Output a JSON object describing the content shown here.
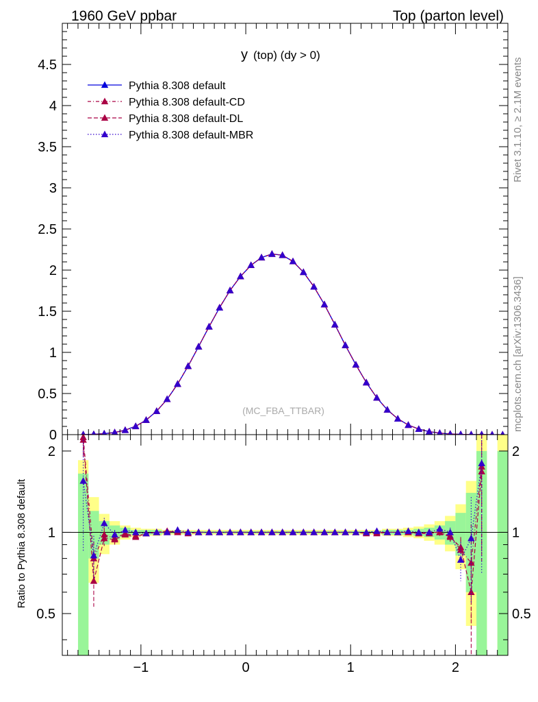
{
  "header": {
    "left": "1960 GeV ppbar",
    "right": "Top (parton level)"
  },
  "side": {
    "rivet": "Rivet 3.1.10, ≥ 2.1M events",
    "mcplots": "mcplots.cern.ch [arXiv:1306.3436]"
  },
  "chart_data": {
    "type": "line",
    "title": {
      "main": "y",
      "sub": "(top) (dy > 0)"
    },
    "watermark": "(MC_FBA_TTBAR)",
    "xlabel": "",
    "ylabel": "",
    "xlim": [
      -1.75,
      2.5
    ],
    "ylim": [
      0,
      5.0
    ],
    "x_ticks": [
      -1,
      0,
      1,
      2
    ],
    "x_tick_labels": [
      "−1",
      "0",
      "1",
      "2"
    ],
    "y_ticks": [
      0,
      0.5,
      1,
      1.5,
      2,
      2.5,
      3,
      3.5,
      4,
      4.5
    ],
    "y_tick_labels": [
      "0",
      "0.5",
      "1",
      "1.5",
      "2",
      "2.5",
      "3",
      "3.5",
      "4",
      "4.5"
    ],
    "legend_position": "top-left",
    "x": [
      -1.55,
      -1.45,
      -1.35,
      -1.25,
      -1.15,
      -1.05,
      -0.95,
      -0.85,
      -0.75,
      -0.65,
      -0.55,
      -0.45,
      -0.35,
      -0.25,
      -0.15,
      -0.05,
      0.05,
      0.15,
      0.25,
      0.35,
      0.45,
      0.55,
      0.65,
      0.75,
      0.85,
      0.95,
      1.05,
      1.15,
      1.25,
      1.35,
      1.45,
      1.55,
      1.65,
      1.75,
      1.85,
      1.95,
      2.05,
      2.15,
      2.25,
      2.35,
      2.45
    ],
    "series": [
      {
        "name": "Pythia 8.308 default",
        "color": "#0000dd",
        "style": "solid",
        "values": [
          0.001,
          0.005,
          0.012,
          0.027,
          0.055,
          0.103,
          0.178,
          0.285,
          0.43,
          0.614,
          0.833,
          1.07,
          1.312,
          1.544,
          1.753,
          1.924,
          2.059,
          2.153,
          2.196,
          2.181,
          2.105,
          1.975,
          1.798,
          1.582,
          1.338,
          1.086,
          0.85,
          0.633,
          0.448,
          0.302,
          0.193,
          0.117,
          0.068,
          0.036,
          0.019,
          0.009,
          0.004,
          0.002,
          0.001,
          0.0,
          0.0
        ]
      },
      {
        "name": "Pythia 8.308 default-CD",
        "color": "#aa0044",
        "style": "dashdot",
        "values": [
          0.002,
          0.004,
          0.011,
          0.026,
          0.055,
          0.101,
          0.177,
          0.286,
          0.43,
          0.617,
          0.831,
          1.07,
          1.312,
          1.544,
          1.753,
          1.924,
          2.059,
          2.153,
          2.196,
          2.182,
          2.105,
          1.975,
          1.798,
          1.582,
          1.338,
          1.086,
          0.85,
          0.633,
          0.448,
          0.302,
          0.193,
          0.117,
          0.068,
          0.036,
          0.019,
          0.008,
          0.003,
          0.001,
          0.002,
          0.0,
          0.0
        ]
      },
      {
        "name": "Pythia 8.308 default-DL",
        "color": "#aa0044",
        "style": "dashed",
        "values": [
          0.002,
          0.003,
          0.011,
          0.026,
          0.054,
          0.1,
          0.177,
          0.285,
          0.431,
          0.616,
          0.834,
          1.071,
          1.313,
          1.544,
          1.753,
          1.924,
          2.059,
          2.153,
          2.196,
          2.181,
          2.106,
          1.975,
          1.798,
          1.582,
          1.338,
          1.086,
          0.85,
          0.633,
          0.448,
          0.302,
          0.193,
          0.117,
          0.068,
          0.036,
          0.019,
          0.008,
          0.003,
          0.001,
          0.002,
          0.0,
          0.0
        ]
      },
      {
        "name": "Pythia 8.308 default-MBR",
        "color": "#3300cc",
        "style": "dotted",
        "values": [
          0.002,
          0.004,
          0.013,
          0.026,
          0.054,
          0.101,
          0.177,
          0.285,
          0.431,
          0.617,
          0.832,
          1.07,
          1.312,
          1.543,
          1.753,
          1.924,
          2.06,
          2.153,
          2.196,
          2.181,
          2.106,
          1.975,
          1.798,
          1.582,
          1.338,
          1.086,
          0.85,
          0.633,
          0.448,
          0.302,
          0.193,
          0.117,
          0.068,
          0.036,
          0.02,
          0.007,
          0.004,
          0.002,
          0.002,
          0.0,
          0.0
        ]
      }
    ],
    "ratio": {
      "ylabel": "Ratio to Pythia 8.308 default",
      "ylim": [
        0.35,
        2.3
      ],
      "y_ticks": [
        0.5,
        1,
        2
      ],
      "y_tick_labels": [
        "0.5",
        "1",
        "2"
      ],
      "reference_line": 1.0,
      "band_yellow_halfwidth": [
        0.85,
        0.35,
        0.17,
        0.1,
        0.06,
        0.04,
        0.03,
        0.03,
        0.02,
        0.02,
        0.02,
        0.02,
        0.02,
        0.02,
        0.02,
        0.02,
        0.02,
        0.02,
        0.02,
        0.02,
        0.02,
        0.02,
        0.02,
        0.02,
        0.02,
        0.02,
        0.02,
        0.02,
        0.02,
        0.03,
        0.03,
        0.04,
        0.05,
        0.07,
        0.1,
        0.15,
        0.27,
        0.55,
        1.3,
        null,
        1.3
      ],
      "band_green_halfwidth": [
        0.65,
        0.2,
        0.1,
        0.06,
        0.04,
        0.02,
        0.02,
        0.02,
        0.01,
        0.01,
        0.01,
        0.01,
        0.01,
        0.01,
        0.01,
        0.01,
        0.01,
        0.01,
        0.01,
        0.01,
        0.01,
        0.01,
        0.01,
        0.01,
        0.01,
        0.01,
        0.01,
        0.01,
        0.01,
        0.02,
        0.02,
        0.02,
        0.03,
        0.04,
        0.06,
        0.1,
        0.18,
        0.4,
        1.0,
        null,
        1.0
      ],
      "series": [
        {
          "name": "Pythia 8.308 default-CD",
          "values": [
            2.25,
            0.8,
            0.98,
            0.95,
            0.99,
            0.97,
            0.99,
            1.0,
            1.0,
            1.01,
            0.99,
            1.0,
            1.0,
            1.0,
            1.0,
            1.0,
            1.0,
            1.0,
            1.0,
            1.0,
            1.0,
            1.0,
            1.0,
            1.0,
            1.0,
            1.0,
            1.0,
            1.0,
            0.99,
            1.0,
            1.0,
            1.0,
            0.99,
            0.99,
            1.0,
            0.97,
            0.86,
            0.77,
            1.75,
            null,
            null
          ],
          "errors": [
            0.3,
            0.12,
            0.06,
            0.04,
            0.02,
            0.01,
            0.01,
            0.01,
            0.01,
            0.01,
            0.01,
            0.01,
            0.01,
            0.01,
            0.01,
            0.01,
            0.01,
            0.01,
            0.01,
            0.01,
            0.01,
            0.01,
            0.01,
            0.01,
            0.01,
            0.01,
            0.01,
            0.01,
            0.01,
            0.01,
            0.01,
            0.01,
            0.02,
            0.02,
            0.03,
            0.05,
            0.08,
            0.3,
            0.9,
            null,
            null
          ]
        },
        {
          "name": "Pythia 8.308 default-DL",
          "values": [
            2.2,
            0.66,
            0.95,
            0.94,
            0.98,
            0.96,
            0.99,
            1.0,
            1.01,
            1.0,
            1.0,
            1.0,
            1.0,
            1.0,
            1.0,
            1.0,
            1.0,
            1.0,
            1.0,
            1.0,
            1.0,
            1.0,
            1.0,
            1.0,
            1.0,
            1.0,
            1.0,
            0.99,
            1.0,
            1.0,
            1.0,
            1.0,
            0.99,
            1.0,
            1.0,
            0.96,
            0.88,
            0.6,
            1.68,
            null,
            null
          ],
          "errors": [
            0.3,
            0.13,
            0.06,
            0.04,
            0.02,
            0.01,
            0.01,
            0.01,
            0.01,
            0.01,
            0.01,
            0.01,
            0.01,
            0.01,
            0.01,
            0.01,
            0.01,
            0.01,
            0.01,
            0.01,
            0.01,
            0.01,
            0.01,
            0.01,
            0.01,
            0.01,
            0.01,
            0.01,
            0.01,
            0.01,
            0.01,
            0.01,
            0.02,
            0.02,
            0.03,
            0.05,
            0.08,
            0.25,
            0.9,
            null,
            null
          ]
        },
        {
          "name": "Pythia 8.308 default-MBR",
          "values": [
            1.55,
            0.82,
            1.08,
            0.98,
            1.02,
            1.0,
            0.99,
            1.0,
            1.0,
            1.02,
            1.0,
            1.0,
            1.0,
            1.0,
            1.0,
            1.0,
            1.0,
            1.0,
            1.0,
            1.0,
            1.0,
            1.0,
            1.0,
            1.0,
            1.0,
            1.0,
            1.0,
            1.0,
            1.01,
            1.0,
            1.0,
            1.01,
            1.0,
            1.0,
            1.03,
            1.0,
            0.79,
            0.95,
            1.8,
            null,
            null
          ],
          "errors": [
            0.7,
            0.15,
            0.05,
            0.04,
            0.02,
            0.01,
            0.01,
            0.01,
            0.01,
            0.01,
            0.01,
            0.01,
            0.01,
            0.01,
            0.01,
            0.01,
            0.01,
            0.01,
            0.01,
            0.01,
            0.01,
            0.01,
            0.01,
            0.01,
            0.01,
            0.01,
            0.01,
            0.01,
            0.01,
            0.01,
            0.01,
            0.01,
            0.02,
            0.02,
            0.03,
            0.04,
            0.13,
            0.4,
            1.1,
            null,
            null
          ]
        }
      ]
    }
  }
}
